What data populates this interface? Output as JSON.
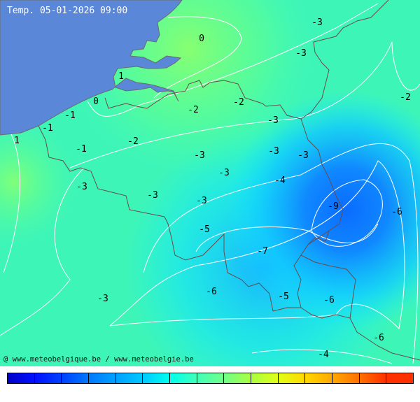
{
  "title": "Temp. 05-01-2026 09:00",
  "credit": "@ www.meteobelgique.be / www.meteobelgie.be",
  "colors": {
    "sea": "#5a87d8",
    "border": "#6b4a4a",
    "isoline": "#ffffff"
  },
  "temperature_labels": [
    "-3",
    "0",
    "-3",
    "1",
    "-2",
    "0",
    "-2",
    "-2",
    "-1",
    "-3",
    "-1",
    "1",
    "-2",
    "-1",
    "-3",
    "-3",
    "-3",
    "-3",
    "-4",
    "-3",
    "-3",
    "-3",
    "-9",
    "-6",
    "-5",
    "-7",
    "-6",
    "-3",
    "-5",
    "-6",
    "-6",
    "-4"
  ],
  "colorbar": [
    "#0000c8",
    "#0010ff",
    "#0040ff",
    "#0078ff",
    "#00a0ff",
    "#00c8ff",
    "#00ffee",
    "#40ffb8",
    "#70ff88",
    "#a8ff40",
    "#e0ff18",
    "#ffd800",
    "#ffa800",
    "#ff7000",
    "#ff3000"
  ]
}
